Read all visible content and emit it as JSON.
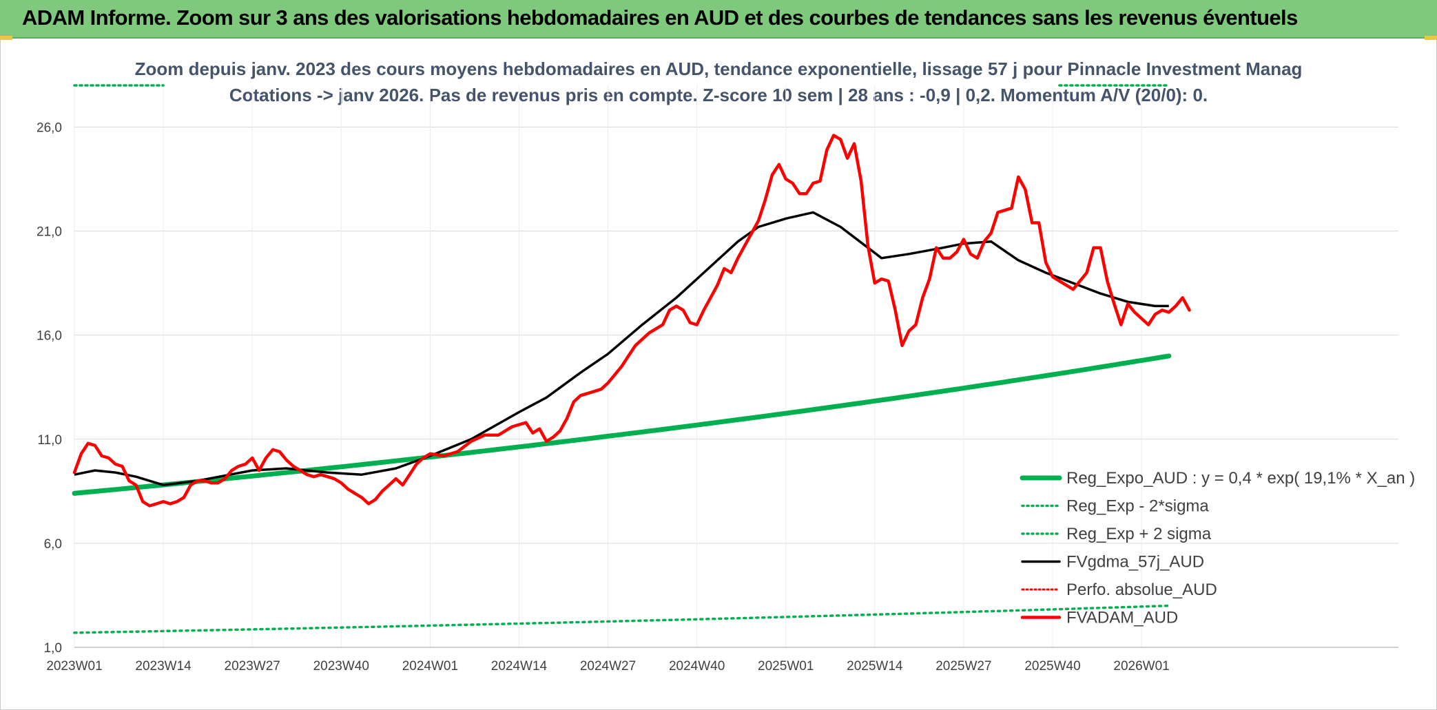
{
  "header": {
    "title": "ADAM Informe. Zoom sur 3 ans des valorisations hebdomadaires en AUD et des courbes de tendances sans les revenus éventuels"
  },
  "colors": {
    "header_bg": "#7ec97b",
    "reg_expo": "#00b050",
    "gdma": "#000000",
    "perfo": "#ff0000",
    "fvadam": "#ff0000",
    "grid": "#d9d9d9"
  },
  "chart_data": {
    "type": "line",
    "title": [
      "Zoom depuis janv. 2023 des cours moyens hebdomadaires en AUD, tendance exponentielle, lissage 57 j pour Pinnacle Investment Manag",
      "Cotations -> janv 2026. Pas de revenus pris en compte. Z-score 10 sem | 28 ans : -0,9 | 0,2. Momentum A/V (20/0): 0."
    ],
    "ylim": [
      1,
      28
    ],
    "yticks": [
      1,
      6,
      11,
      16,
      21,
      26
    ],
    "ytick_labels": [
      "1,0",
      "6,0",
      "11,0",
      "16,0",
      "21,0",
      "26,0"
    ],
    "n_weeks": 160,
    "xticks": [
      0,
      13,
      26,
      39,
      52,
      65,
      78,
      91,
      104,
      117,
      130,
      143,
      156
    ],
    "xtick_labels": [
      "2023W01",
      "2023W14",
      "2023W27",
      "2023W40",
      "2024W01",
      "2024W14",
      "2024W27",
      "2024W40",
      "2025W01",
      "2025W14",
      "2025W27",
      "2025W40",
      "2026W01"
    ],
    "legend": [
      {
        "key": "reg_expo",
        "label": "Reg_Expo_AUD : y = 0,4 * exp( 19,1% *  X_an )",
        "style": "thick"
      },
      {
        "key": "reg_minus",
        "label": "Reg_Exp - 2*sigma",
        "style": "dotted-green"
      },
      {
        "key": "reg_plus",
        "label": "Reg_Exp + 2 sigma",
        "style": "dotted-green"
      },
      {
        "key": "gdma",
        "label": "FVgdma_57j_AUD",
        "style": "black"
      },
      {
        "key": "perfo",
        "label": "Perfo. absolue_AUD",
        "style": "dotted-red"
      },
      {
        "key": "fvadam",
        "label": "FVADAM_AUD",
        "style": "red"
      }
    ],
    "series": [
      {
        "name": "Reg_Expo_AUD",
        "key": "reg_expo",
        "formula": "exp",
        "start": 8.4,
        "end": 15.0
      },
      {
        "name": "Reg_Exp - 2*sigma",
        "key": "reg_minus",
        "formula": "exp",
        "start": 1.7,
        "end": 3.0
      },
      {
        "name": "Reg_Exp + 2 sigma",
        "key": "reg_plus",
        "constant": 28.0,
        "visible_ranges": [
          [
            0,
            13
          ],
          [
            144,
            160
          ]
        ]
      },
      {
        "name": "FVgdma_57j_AUD",
        "key": "gdma",
        "anchors": [
          [
            0,
            9.3
          ],
          [
            3,
            9.5
          ],
          [
            6,
            9.4
          ],
          [
            9,
            9.2
          ],
          [
            13,
            8.8
          ],
          [
            18,
            9.0
          ],
          [
            26,
            9.5
          ],
          [
            31,
            9.6
          ],
          [
            37,
            9.4
          ],
          [
            42,
            9.3
          ],
          [
            47,
            9.6
          ],
          [
            52,
            10.2
          ],
          [
            58,
            11.0
          ],
          [
            65,
            12.3
          ],
          [
            69,
            13.0
          ],
          [
            74,
            14.2
          ],
          [
            78,
            15.1
          ],
          [
            83,
            16.5
          ],
          [
            88,
            17.8
          ],
          [
            92,
            19.0
          ],
          [
            97,
            20.5
          ],
          [
            100,
            21.2
          ],
          [
            104,
            21.6
          ],
          [
            108,
            21.9
          ],
          [
            112,
            21.2
          ],
          [
            116,
            20.2
          ],
          [
            118,
            19.7
          ],
          [
            122,
            19.9
          ],
          [
            127,
            20.2
          ],
          [
            130,
            20.4
          ],
          [
            134,
            20.5
          ],
          [
            138,
            19.6
          ],
          [
            142,
            19.0
          ],
          [
            146,
            18.5
          ],
          [
            150,
            18.0
          ],
          [
            154,
            17.6
          ],
          [
            158,
            17.4
          ],
          [
            160,
            17.4
          ]
        ]
      },
      {
        "name": "FVADAM_AUD",
        "key": "fvadam",
        "anchors": [
          [
            0,
            9.4
          ],
          [
            1,
            10.3
          ],
          [
            2,
            10.8
          ],
          [
            3,
            10.7
          ],
          [
            4,
            10.2
          ],
          [
            5,
            10.1
          ],
          [
            6,
            9.8
          ],
          [
            7,
            9.7
          ],
          [
            8,
            9.0
          ],
          [
            9,
            8.8
          ],
          [
            10,
            8.0
          ],
          [
            11,
            7.8
          ],
          [
            12,
            7.9
          ],
          [
            13,
            8.0
          ],
          [
            14,
            7.9
          ],
          [
            15,
            8.0
          ],
          [
            16,
            8.2
          ],
          [
            17,
            8.8
          ],
          [
            18,
            9.0
          ],
          [
            19,
            9.0
          ],
          [
            20,
            8.9
          ],
          [
            21,
            8.9
          ],
          [
            22,
            9.1
          ],
          [
            23,
            9.5
          ],
          [
            24,
            9.7
          ],
          [
            25,
            9.8
          ],
          [
            26,
            10.1
          ],
          [
            27,
            9.5
          ],
          [
            28,
            10.1
          ],
          [
            29,
            10.5
          ],
          [
            30,
            10.4
          ],
          [
            31,
            10.0
          ],
          [
            32,
            9.7
          ],
          [
            33,
            9.5
          ],
          [
            34,
            9.3
          ],
          [
            35,
            9.2
          ],
          [
            36,
            9.3
          ],
          [
            37,
            9.2
          ],
          [
            38,
            9.1
          ],
          [
            39,
            8.9
          ],
          [
            40,
            8.6
          ],
          [
            41,
            8.4
          ],
          [
            42,
            8.2
          ],
          [
            43,
            7.9
          ],
          [
            44,
            8.1
          ],
          [
            45,
            8.5
          ],
          [
            46,
            8.8
          ],
          [
            47,
            9.1
          ],
          [
            48,
            8.8
          ],
          [
            49,
            9.3
          ],
          [
            50,
            9.8
          ],
          [
            51,
            10.1
          ],
          [
            52,
            10.3
          ],
          [
            54,
            10.2
          ],
          [
            56,
            10.4
          ],
          [
            58,
            10.9
          ],
          [
            60,
            11.2
          ],
          [
            62,
            11.2
          ],
          [
            64,
            11.6
          ],
          [
            66,
            11.8
          ],
          [
            67,
            11.3
          ],
          [
            68,
            11.5
          ],
          [
            69,
            10.9
          ],
          [
            70,
            11.1
          ],
          [
            71,
            11.4
          ],
          [
            72,
            12.0
          ],
          [
            73,
            12.8
          ],
          [
            74,
            13.1
          ],
          [
            76,
            13.3
          ],
          [
            77,
            13.4
          ],
          [
            78,
            13.7
          ],
          [
            79,
            14.1
          ],
          [
            80,
            14.5
          ],
          [
            81,
            15.0
          ],
          [
            82,
            15.5
          ],
          [
            83,
            15.8
          ],
          [
            84,
            16.1
          ],
          [
            85,
            16.3
          ],
          [
            86,
            16.5
          ],
          [
            87,
            17.2
          ],
          [
            88,
            17.4
          ],
          [
            89,
            17.2
          ],
          [
            90,
            16.6
          ],
          [
            91,
            16.5
          ],
          [
            92,
            17.2
          ],
          [
            93,
            17.8
          ],
          [
            94,
            18.4
          ],
          [
            95,
            19.2
          ],
          [
            96,
            19.0
          ],
          [
            97,
            19.7
          ],
          [
            98,
            20.3
          ],
          [
            99,
            20.9
          ],
          [
            100,
            21.5
          ],
          [
            101,
            22.5
          ],
          [
            102,
            23.7
          ],
          [
            103,
            24.2
          ],
          [
            104,
            23.5
          ],
          [
            105,
            23.3
          ],
          [
            106,
            22.8
          ],
          [
            107,
            22.8
          ],
          [
            108,
            23.3
          ],
          [
            109,
            23.4
          ],
          [
            110,
            24.9
          ],
          [
            111,
            25.6
          ],
          [
            112,
            25.4
          ],
          [
            113,
            24.5
          ],
          [
            114,
            25.2
          ],
          [
            115,
            23.4
          ],
          [
            116,
            20.3
          ],
          [
            117,
            18.5
          ],
          [
            118,
            18.7
          ],
          [
            119,
            18.6
          ],
          [
            120,
            17.2
          ],
          [
            121,
            15.5
          ],
          [
            122,
            16.2
          ],
          [
            123,
            16.5
          ],
          [
            124,
            17.8
          ],
          [
            125,
            18.7
          ],
          [
            126,
            20.2
          ],
          [
            127,
            19.7
          ],
          [
            128,
            19.7
          ],
          [
            129,
            20.0
          ],
          [
            130,
            20.6
          ],
          [
            131,
            19.9
          ],
          [
            132,
            19.7
          ],
          [
            133,
            20.5
          ],
          [
            134,
            20.9
          ],
          [
            135,
            21.9
          ],
          [
            136,
            22.0
          ],
          [
            137,
            22.1
          ],
          [
            138,
            23.6
          ],
          [
            139,
            23.0
          ],
          [
            140,
            21.4
          ],
          [
            141,
            21.4
          ],
          [
            142,
            19.5
          ],
          [
            143,
            18.8
          ],
          [
            144,
            18.6
          ],
          [
            145,
            18.4
          ],
          [
            146,
            18.2
          ],
          [
            147,
            18.6
          ],
          [
            148,
            19.0
          ],
          [
            149,
            20.2
          ],
          [
            150,
            20.2
          ],
          [
            151,
            18.6
          ],
          [
            152,
            17.5
          ],
          [
            153,
            16.5
          ],
          [
            154,
            17.5
          ],
          [
            155,
            17.1
          ],
          [
            156,
            16.8
          ],
          [
            157,
            16.5
          ],
          [
            158,
            17.0
          ],
          [
            159,
            17.2
          ],
          [
            160,
            17.1
          ],
          [
            161,
            17.4
          ],
          [
            162,
            17.8
          ],
          [
            163,
            17.2
          ]
        ]
      }
    ]
  }
}
